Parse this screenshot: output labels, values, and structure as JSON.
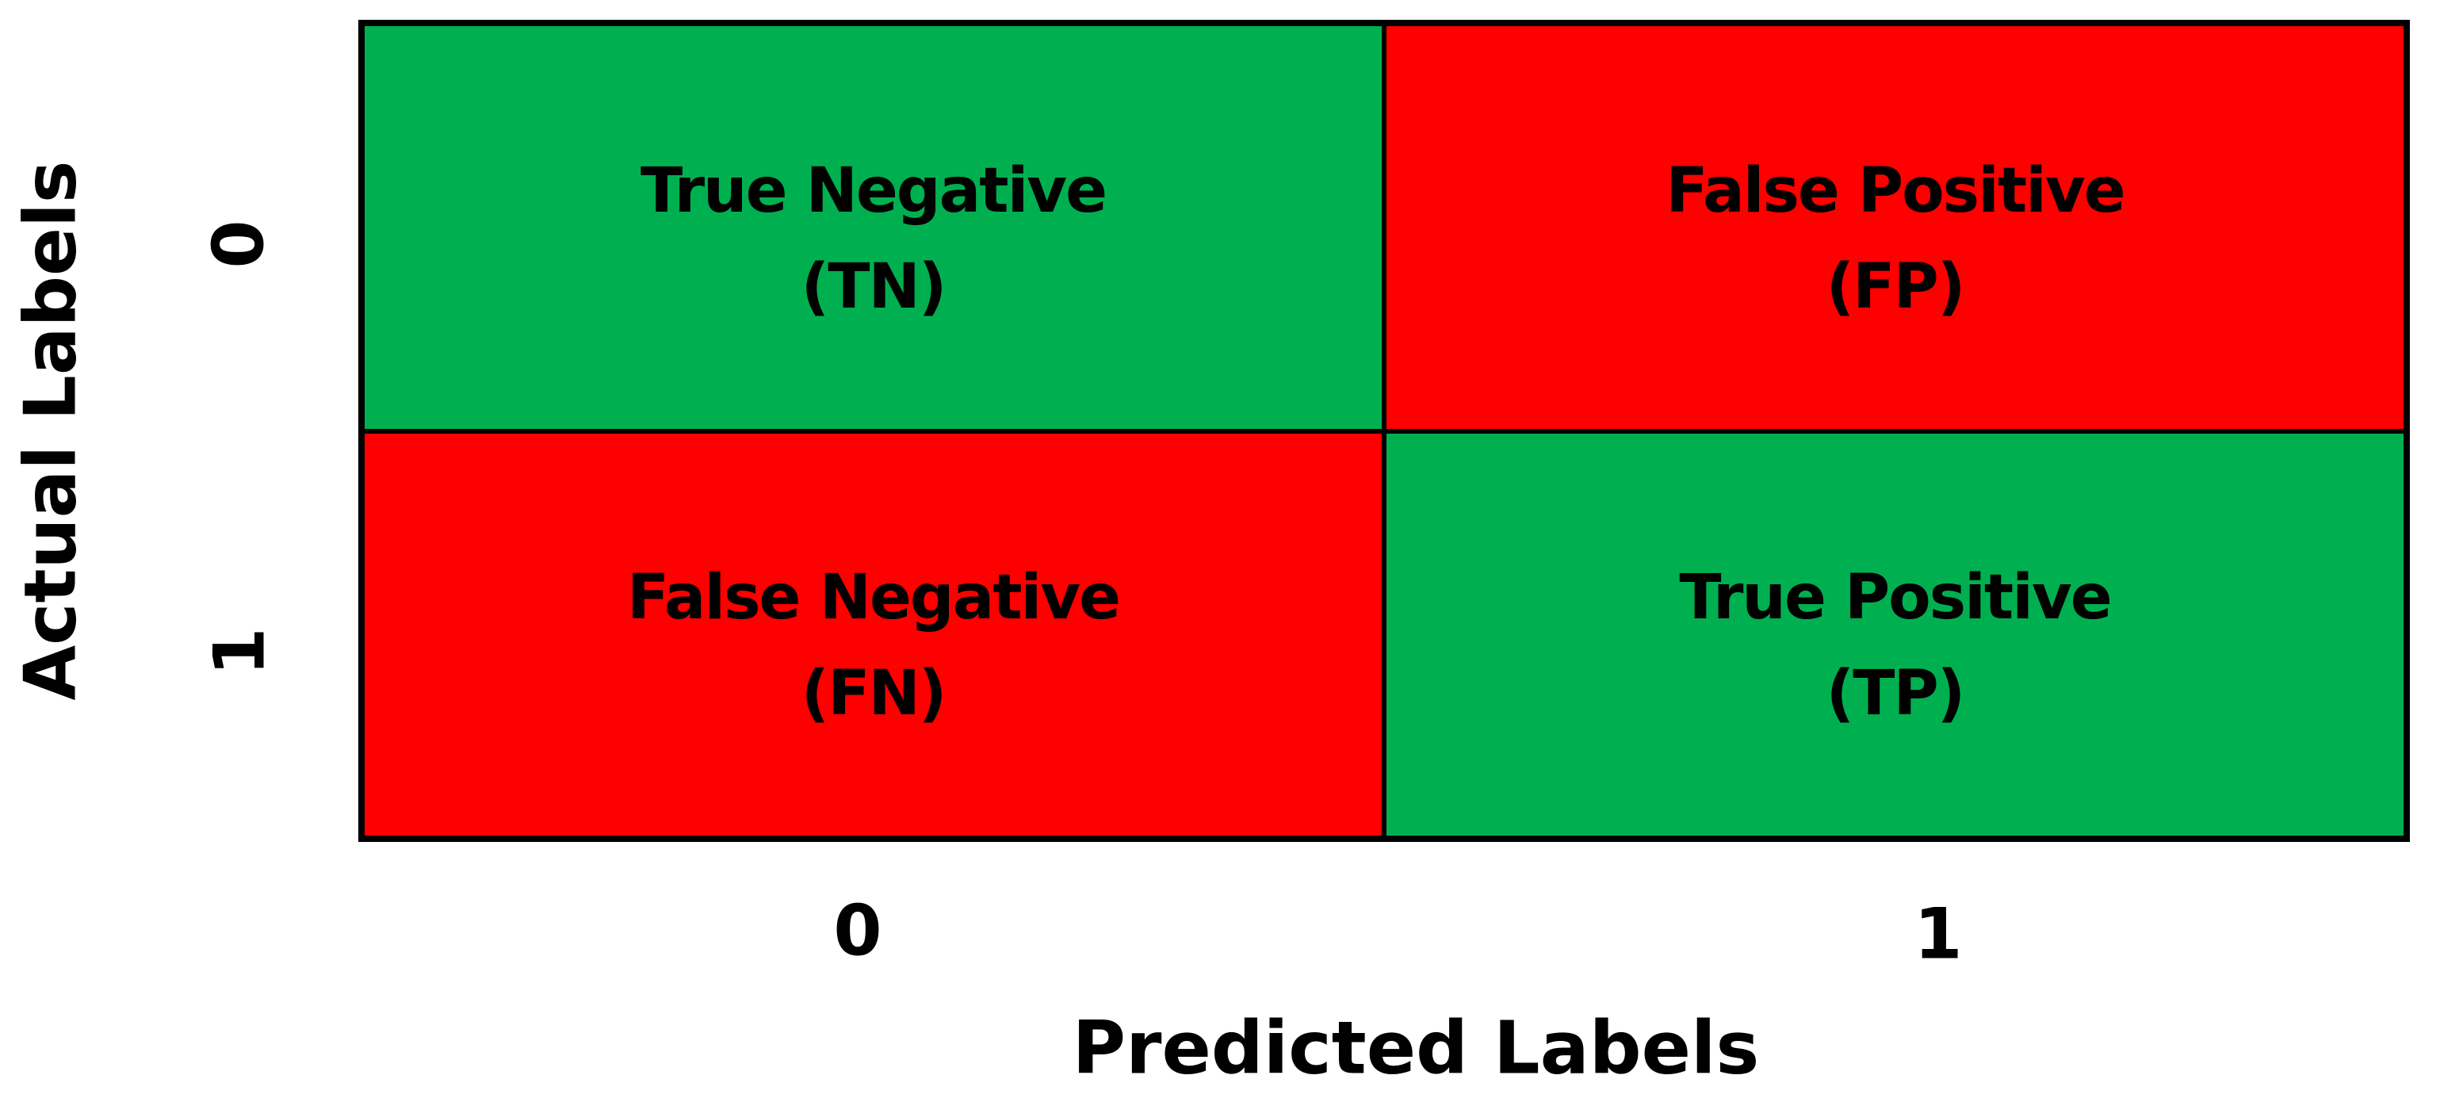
{
  "diagram": {
    "type": "confusion-matrix",
    "axes": {
      "y_title": "Actual Labels",
      "x_title": "Predicted Labels",
      "y_ticks": [
        "0",
        "1"
      ],
      "x_ticks": [
        "0",
        "1"
      ]
    },
    "cells": [
      {
        "row": "0",
        "col": "0",
        "label": "True Negative",
        "abbr": "(TN)",
        "color": "#00B050",
        "kind": "correct"
      },
      {
        "row": "0",
        "col": "1",
        "label": "False Positive",
        "abbr": "(FP)",
        "color": "#FF0000",
        "kind": "error"
      },
      {
        "row": "1",
        "col": "0",
        "label": "False Negative",
        "abbr": "(FN)",
        "color": "#FF0000",
        "kind": "error"
      },
      {
        "row": "1",
        "col": "1",
        "label": "True Positive",
        "abbr": "(TP)",
        "color": "#00B050",
        "kind": "correct"
      }
    ],
    "colors": {
      "correct": "#00B050",
      "error": "#FF0000",
      "border": "#000000",
      "text": "#000000",
      "background": "#FFFFFF"
    }
  }
}
